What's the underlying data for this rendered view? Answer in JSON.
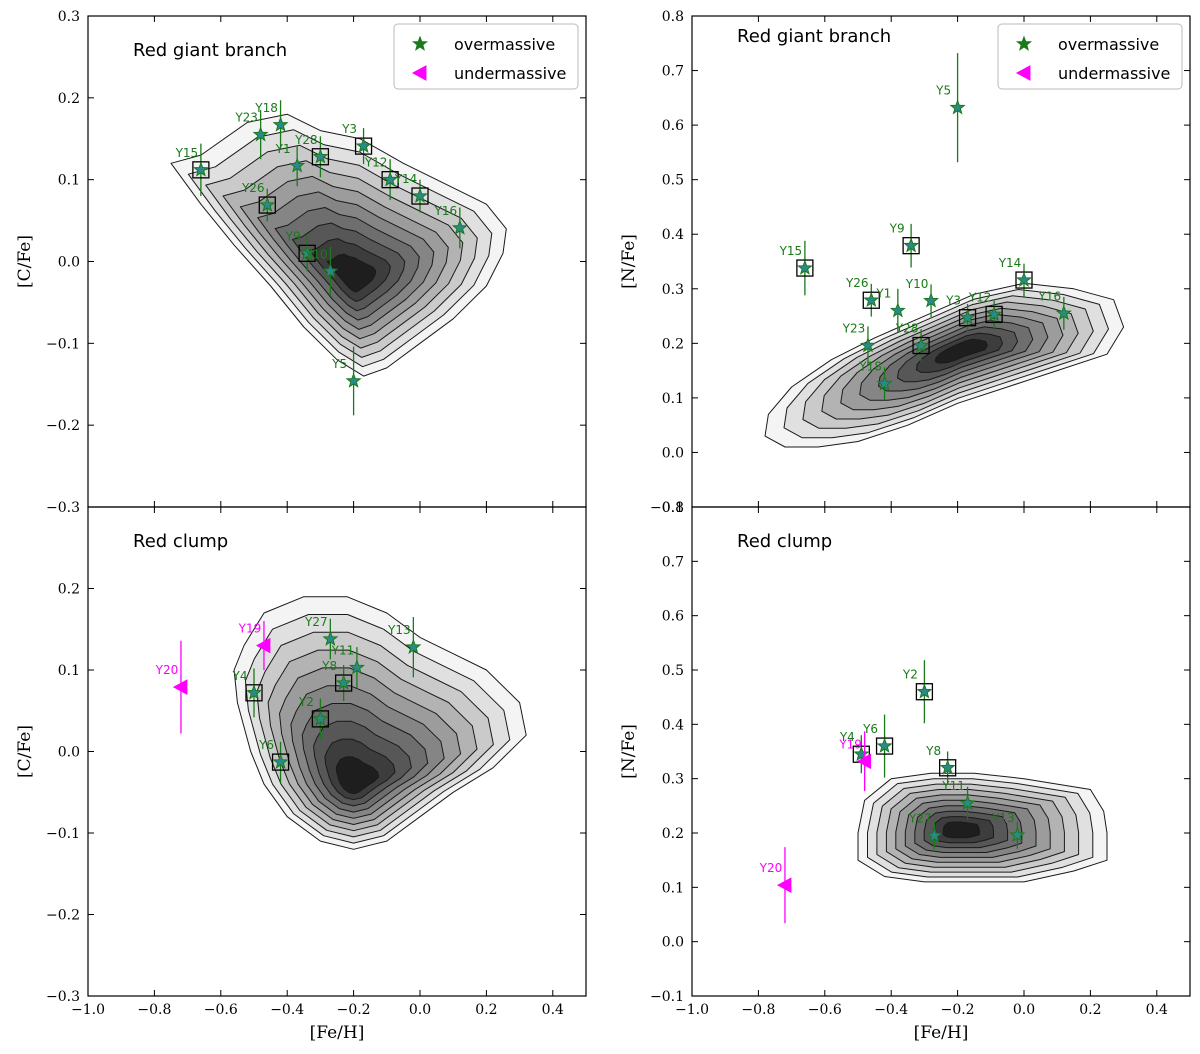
{
  "chart_data": {
    "type": "scatter",
    "xlabel": "[Fe/H]",
    "xlim": [
      -1.0,
      0.5
    ],
    "xticks": [
      -1.0,
      -0.8,
      -0.6,
      -0.4,
      -0.2,
      0.0,
      0.2,
      0.4
    ],
    "xtick_labels": [
      "−1.0",
      "−0.8",
      "−0.6",
      "−0.4",
      "−0.2",
      "0.0",
      "0.2",
      "0.4"
    ],
    "legend": {
      "position": "top-right",
      "entries": [
        {
          "label": "overmassive",
          "marker": "star",
          "color": "#1a7a1a"
        },
        {
          "label": "undermassive",
          "marker": "left-triangle",
          "color": "#ff00ff"
        }
      ]
    },
    "colors": {
      "over": "#1a7a1a",
      "under": "#ff00ff",
      "fill": "#2a8a8a"
    },
    "panels": [
      {
        "id": "cfe-rgb",
        "title": "Red giant branch",
        "ylabel": "[C/Fe]",
        "ylim": [
          -0.3,
          0.3
        ],
        "yticks": [
          -0.3,
          -0.2,
          -0.1,
          0.0,
          0.1,
          0.2,
          0.3
        ],
        "ytick_labels": [
          "−0.3",
          "−0.2",
          "−0.1",
          "0.0",
          "0.1",
          "0.2",
          "0.3"
        ],
        "show_legend": true,
        "show_xticklabels": false,
        "contour": {
          "center": [
            -0.2,
            -0.02
          ],
          "outer": [
            [
              -0.75,
              0.12
            ],
            [
              -0.66,
              0.13
            ],
            [
              -0.52,
              0.17
            ],
            [
              -0.4,
              0.18
            ],
            [
              -0.3,
              0.16
            ],
            [
              -0.18,
              0.15
            ],
            [
              -0.05,
              0.12
            ],
            [
              0.1,
              0.09
            ],
            [
              0.2,
              0.07
            ],
            [
              0.26,
              0.04
            ],
            [
              0.25,
              0.01
            ],
            [
              0.2,
              -0.03
            ],
            [
              0.1,
              -0.07
            ],
            [
              0.0,
              -0.1
            ],
            [
              -0.1,
              -0.13
            ],
            [
              -0.17,
              -0.14
            ],
            [
              -0.25,
              -0.12
            ],
            [
              -0.35,
              -0.08
            ],
            [
              -0.45,
              -0.03
            ],
            [
              -0.56,
              0.02
            ],
            [
              -0.66,
              0.07
            ]
          ]
        },
        "points": [
          {
            "name": "Y15",
            "x": -0.66,
            "y": 0.112,
            "err": 0.032,
            "boxed": true,
            "type": "over"
          },
          {
            "name": "Y23",
            "x": -0.48,
            "y": 0.155,
            "err": 0.03,
            "boxed": false,
            "type": "over"
          },
          {
            "name": "Y18",
            "x": -0.42,
            "y": 0.167,
            "err": 0.03,
            "boxed": false,
            "type": "over"
          },
          {
            "name": "Y1",
            "x": -0.37,
            "y": 0.117,
            "err": 0.025,
            "boxed": false,
            "type": "over"
          },
          {
            "name": "Y28",
            "x": -0.3,
            "y": 0.128,
            "err": 0.025,
            "boxed": true,
            "type": "over"
          },
          {
            "name": "Y26",
            "x": -0.46,
            "y": 0.069,
            "err": 0.02,
            "boxed": true,
            "type": "over"
          },
          {
            "name": "Y3",
            "x": -0.17,
            "y": 0.141,
            "err": 0.022,
            "boxed": true,
            "type": "over"
          },
          {
            "name": "Y12",
            "x": -0.09,
            "y": 0.1,
            "err": 0.025,
            "boxed": true,
            "type": "over"
          },
          {
            "name": "Y14",
            "x": 0.0,
            "y": 0.08,
            "err": 0.02,
            "boxed": true,
            "type": "over"
          },
          {
            "name": "Y16",
            "x": 0.12,
            "y": 0.041,
            "err": 0.025,
            "boxed": false,
            "type": "over"
          },
          {
            "name": "Y9",
            "x": -0.34,
            "y": 0.01,
            "err": 0.022,
            "boxed": true,
            "type": "over"
          },
          {
            "name": "Y10",
            "x": -0.27,
            "y": -0.012,
            "err": 0.03,
            "boxed": false,
            "type": "over"
          },
          {
            "name": "Y5",
            "x": -0.2,
            "y": -0.146,
            "err": 0.042,
            "boxed": false,
            "type": "over"
          }
        ]
      },
      {
        "id": "nfe-rgb",
        "title": "Red giant branch",
        "ylabel": "[N/Fe]",
        "ylim": [
          -0.1,
          0.8
        ],
        "yticks": [
          -0.1,
          0.0,
          0.1,
          0.2,
          0.3,
          0.4,
          0.5,
          0.6,
          0.7,
          0.8
        ],
        "ytick_labels": [
          "−0.1",
          "0.0",
          "0.1",
          "0.2",
          "0.3",
          "0.4",
          "0.5",
          "0.6",
          "0.7",
          "0.8"
        ],
        "show_legend": true,
        "show_xticklabels": false,
        "contour": {
          "center": [
            -0.18,
            0.19
          ],
          "outer": [
            [
              -0.77,
              0.07
            ],
            [
              -0.7,
              0.12
            ],
            [
              -0.58,
              0.17
            ],
            [
              -0.45,
              0.21
            ],
            [
              -0.3,
              0.25
            ],
            [
              -0.15,
              0.29
            ],
            [
              0.0,
              0.31
            ],
            [
              0.15,
              0.3
            ],
            [
              0.27,
              0.28
            ],
            [
              0.3,
              0.23
            ],
            [
              0.25,
              0.18
            ],
            [
              0.1,
              0.15
            ],
            [
              -0.05,
              0.12
            ],
            [
              -0.2,
              0.09
            ],
            [
              -0.35,
              0.05
            ],
            [
              -0.5,
              0.02
            ],
            [
              -0.62,
              0.01
            ],
            [
              -0.72,
              0.01
            ],
            [
              -0.78,
              0.03
            ]
          ]
        },
        "points": [
          {
            "name": "Y5",
            "x": -0.2,
            "y": 0.632,
            "err": 0.1,
            "boxed": false,
            "type": "over"
          },
          {
            "name": "Y15",
            "x": -0.66,
            "y": 0.338,
            "err": 0.05,
            "boxed": true,
            "type": "over"
          },
          {
            "name": "Y9",
            "x": -0.34,
            "y": 0.379,
            "err": 0.04,
            "boxed": true,
            "type": "over"
          },
          {
            "name": "Y26",
            "x": -0.46,
            "y": 0.279,
            "err": 0.03,
            "boxed": true,
            "type": "over"
          },
          {
            "name": "Y1",
            "x": -0.38,
            "y": 0.26,
            "err": 0.04,
            "boxed": false,
            "type": "over"
          },
          {
            "name": "Y10",
            "x": -0.28,
            "y": 0.278,
            "err": 0.03,
            "boxed": false,
            "type": "over"
          },
          {
            "name": "Y3",
            "x": -0.17,
            "y": 0.247,
            "err": 0.025,
            "boxed": true,
            "type": "over"
          },
          {
            "name": "Y12",
            "x": -0.09,
            "y": 0.253,
            "err": 0.025,
            "boxed": true,
            "type": "over"
          },
          {
            "name": "Y14",
            "x": 0.0,
            "y": 0.316,
            "err": 0.03,
            "boxed": true,
            "type": "over"
          },
          {
            "name": "Y16",
            "x": 0.12,
            "y": 0.255,
            "err": 0.03,
            "boxed": false,
            "type": "over"
          },
          {
            "name": "Y23",
            "x": -0.47,
            "y": 0.196,
            "err": 0.035,
            "boxed": false,
            "type": "over"
          },
          {
            "name": "Y28",
            "x": -0.31,
            "y": 0.196,
            "err": 0.03,
            "boxed": true,
            "type": "over"
          },
          {
            "name": "Y18",
            "x": -0.42,
            "y": 0.126,
            "err": 0.03,
            "boxed": false,
            "type": "over"
          }
        ]
      },
      {
        "id": "cfe-rc",
        "title": "Red clump",
        "ylabel": "[C/Fe]",
        "ylim": [
          -0.3,
          0.3
        ],
        "yticks": [
          -0.3,
          -0.2,
          -0.1,
          0.0,
          0.1,
          0.2
        ],
        "ytick_labels": [
          "−0.3",
          "−0.2",
          "−0.1",
          "0.0",
          "0.1",
          "0.2"
        ],
        "show_legend": false,
        "show_xticklabels": true,
        "contour": {
          "center": [
            -0.2,
            -0.04
          ],
          "outer": [
            [
              -0.53,
              0.13
            ],
            [
              -0.47,
              0.17
            ],
            [
              -0.35,
              0.19
            ],
            [
              -0.22,
              0.19
            ],
            [
              -0.1,
              0.17
            ],
            [
              0.0,
              0.14
            ],
            [
              0.1,
              0.12
            ],
            [
              0.2,
              0.1
            ],
            [
              0.3,
              0.06
            ],
            [
              0.32,
              0.02
            ],
            [
              0.22,
              -0.02
            ],
            [
              0.1,
              -0.05
            ],
            [
              0.0,
              -0.08
            ],
            [
              -0.1,
              -0.11
            ],
            [
              -0.2,
              -0.12
            ],
            [
              -0.3,
              -0.11
            ],
            [
              -0.4,
              -0.08
            ],
            [
              -0.47,
              -0.04
            ],
            [
              -0.51,
              0.0
            ],
            [
              -0.55,
              0.06
            ],
            [
              -0.56,
              0.1
            ]
          ]
        },
        "points": [
          {
            "name": "Y20",
            "x": -0.72,
            "y": 0.079,
            "err": 0.057,
            "boxed": false,
            "type": "under"
          },
          {
            "name": "Y19",
            "x": -0.47,
            "y": 0.13,
            "err": 0.03,
            "boxed": false,
            "type": "under"
          },
          {
            "name": "Y4",
            "x": -0.5,
            "y": 0.072,
            "err": 0.03,
            "boxed": true,
            "type": "over"
          },
          {
            "name": "Y27",
            "x": -0.27,
            "y": 0.138,
            "err": 0.025,
            "boxed": false,
            "type": "over"
          },
          {
            "name": "Y8",
            "x": -0.23,
            "y": 0.084,
            "err": 0.022,
            "boxed": true,
            "type": "over"
          },
          {
            "name": "Y11",
            "x": -0.19,
            "y": 0.103,
            "err": 0.025,
            "boxed": false,
            "type": "over"
          },
          {
            "name": "Y13",
            "x": -0.02,
            "y": 0.128,
            "err": 0.037,
            "boxed": false,
            "type": "over"
          },
          {
            "name": "Y2",
            "x": -0.3,
            "y": 0.04,
            "err": 0.025,
            "boxed": true,
            "type": "over"
          },
          {
            "name": "Y6",
            "x": -0.42,
            "y": -0.013,
            "err": 0.025,
            "boxed": true,
            "type": "over"
          }
        ]
      },
      {
        "id": "nfe-rc",
        "title": "Red clump",
        "ylabel": "[N/Fe]",
        "ylim": [
          -0.1,
          0.8
        ],
        "yticks": [
          -0.1,
          0.0,
          0.1,
          0.2,
          0.3,
          0.4,
          0.5,
          0.6,
          0.7,
          0.8
        ],
        "ytick_labels": [
          "−0.1",
          "0.0",
          "0.1",
          "0.2",
          "0.3",
          "0.4",
          "0.5",
          "0.6",
          "0.7",
          "0.8"
        ],
        "show_legend": false,
        "show_xticklabels": true,
        "contour": {
          "center": [
            -0.2,
            0.205
          ],
          "outer": [
            [
              -0.5,
              0.2
            ],
            [
              -0.48,
              0.26
            ],
            [
              -0.4,
              0.3
            ],
            [
              -0.28,
              0.31
            ],
            [
              -0.15,
              0.31
            ],
            [
              0.0,
              0.3
            ],
            [
              0.1,
              0.29
            ],
            [
              0.2,
              0.28
            ],
            [
              0.24,
              0.24
            ],
            [
              0.25,
              0.2
            ],
            [
              0.25,
              0.15
            ],
            [
              0.15,
              0.13
            ],
            [
              0.0,
              0.11
            ],
            [
              -0.15,
              0.11
            ],
            [
              -0.3,
              0.11
            ],
            [
              -0.42,
              0.12
            ],
            [
              -0.5,
              0.15
            ]
          ]
        },
        "points": [
          {
            "name": "Y2",
            "x": -0.3,
            "y": 0.46,
            "err": 0.058,
            "boxed": true,
            "type": "over"
          },
          {
            "name": "Y6",
            "x": -0.42,
            "y": 0.36,
            "err": 0.058,
            "boxed": true,
            "type": "over"
          },
          {
            "name": "Y4",
            "x": -0.49,
            "y": 0.345,
            "err": 0.035,
            "boxed": true,
            "type": "over"
          },
          {
            "name": "Y19",
            "x": -0.48,
            "y": 0.332,
            "err": 0.055,
            "boxed": false,
            "type": "under"
          },
          {
            "name": "Y8",
            "x": -0.23,
            "y": 0.32,
            "err": 0.03,
            "boxed": true,
            "type": "over"
          },
          {
            "name": "Y11",
            "x": -0.17,
            "y": 0.255,
            "err": 0.03,
            "boxed": false,
            "type": "over"
          },
          {
            "name": "Y27",
            "x": -0.27,
            "y": 0.195,
            "err": 0.025,
            "boxed": false,
            "type": "over"
          },
          {
            "name": "Y13",
            "x": -0.02,
            "y": 0.196,
            "err": 0.025,
            "boxed": false,
            "type": "over"
          },
          {
            "name": "Y20",
            "x": -0.72,
            "y": 0.104,
            "err": 0.07,
            "boxed": false,
            "type": "under"
          }
        ]
      }
    ]
  }
}
